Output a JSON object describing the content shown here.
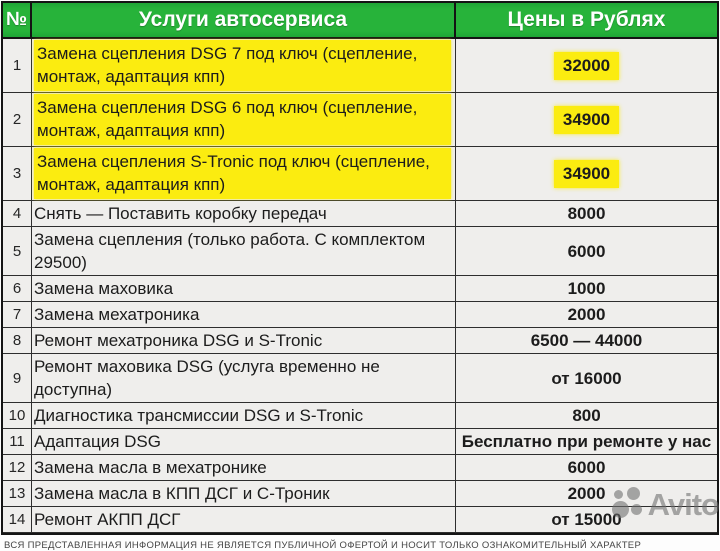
{
  "table": {
    "header": {
      "num": "№",
      "service": "Услуги автосервиса",
      "price": "Цены в Рублях"
    },
    "rows": [
      {
        "num": "1",
        "service": "Замена сцепления DSG 7 под ключ (сцепление, монтаж, адаптация кпп)",
        "price": "32000",
        "style": "marker"
      },
      {
        "num": "2",
        "service": "Замена сцепления DSG 6 под ключ (сцепление, монтаж, адаптация кпп)",
        "price": "34900",
        "style": "marker"
      },
      {
        "num": "3",
        "service": "Замена сцепления S-Tronic под ключ (сцепление, монтаж, адаптация кпп)",
        "price": "34900",
        "style": "marker"
      },
      {
        "num": "4",
        "service": "Снять — Поставить коробку передач",
        "price": "8000",
        "style": "band"
      },
      {
        "num": "5",
        "service": "Замена сцепления (только работа. С комплектом 29500)",
        "price": "6000",
        "style": "plain"
      },
      {
        "num": "6",
        "service": "Замена маховика",
        "price": "1000",
        "style": "band"
      },
      {
        "num": "7",
        "service": "Замена мехатроника",
        "price": "2000",
        "style": "plain"
      },
      {
        "num": "8",
        "service": "Ремонт мехатроника DSG и S-Tronic",
        "price": "6500 — 44000",
        "style": "band"
      },
      {
        "num": "9",
        "service": "Ремонт маховика DSG (услуга временно не доступна)",
        "price": "от 16000",
        "style": "plain"
      },
      {
        "num": "10",
        "service": "Диагностика трансмиссии DSG и S-Tronic",
        "price": "800",
        "style": "band"
      },
      {
        "num": "11",
        "service": "Адаптация DSG",
        "price": "Бесплатно при ремонте у нас",
        "style": "plain"
      },
      {
        "num": "12",
        "service": "Замена масла в мехатронике",
        "price": "6000",
        "style": "band"
      },
      {
        "num": "13",
        "service": "Замена масла в КПП ДСГ и С-Троник",
        "price": "2000",
        "style": "plain"
      },
      {
        "num": "14",
        "service": "Ремонт АКПП ДСГ",
        "price": "от 15000",
        "style": "band"
      }
    ]
  },
  "footer": {
    "disclaimer": "ВСЯ ПРЕДСТАВЛЕННАЯ ИНФОРМАЦИЯ НЕ ЯВЛЯЕТСЯ ПУБЛИЧНОЙ ОФЕРТОЙ И НОСИТ ТОЛЬКО ОЗНАКОМИТЕЛЬНЫЙ ХАРАКТЕР"
  },
  "watermark": {
    "brand": "Avito"
  },
  "colors": {
    "header_green": "#27b33a",
    "marker_yellow": "#fbec10",
    "band_yellow": "#f6f38e",
    "row_plain": "#efeeec"
  }
}
